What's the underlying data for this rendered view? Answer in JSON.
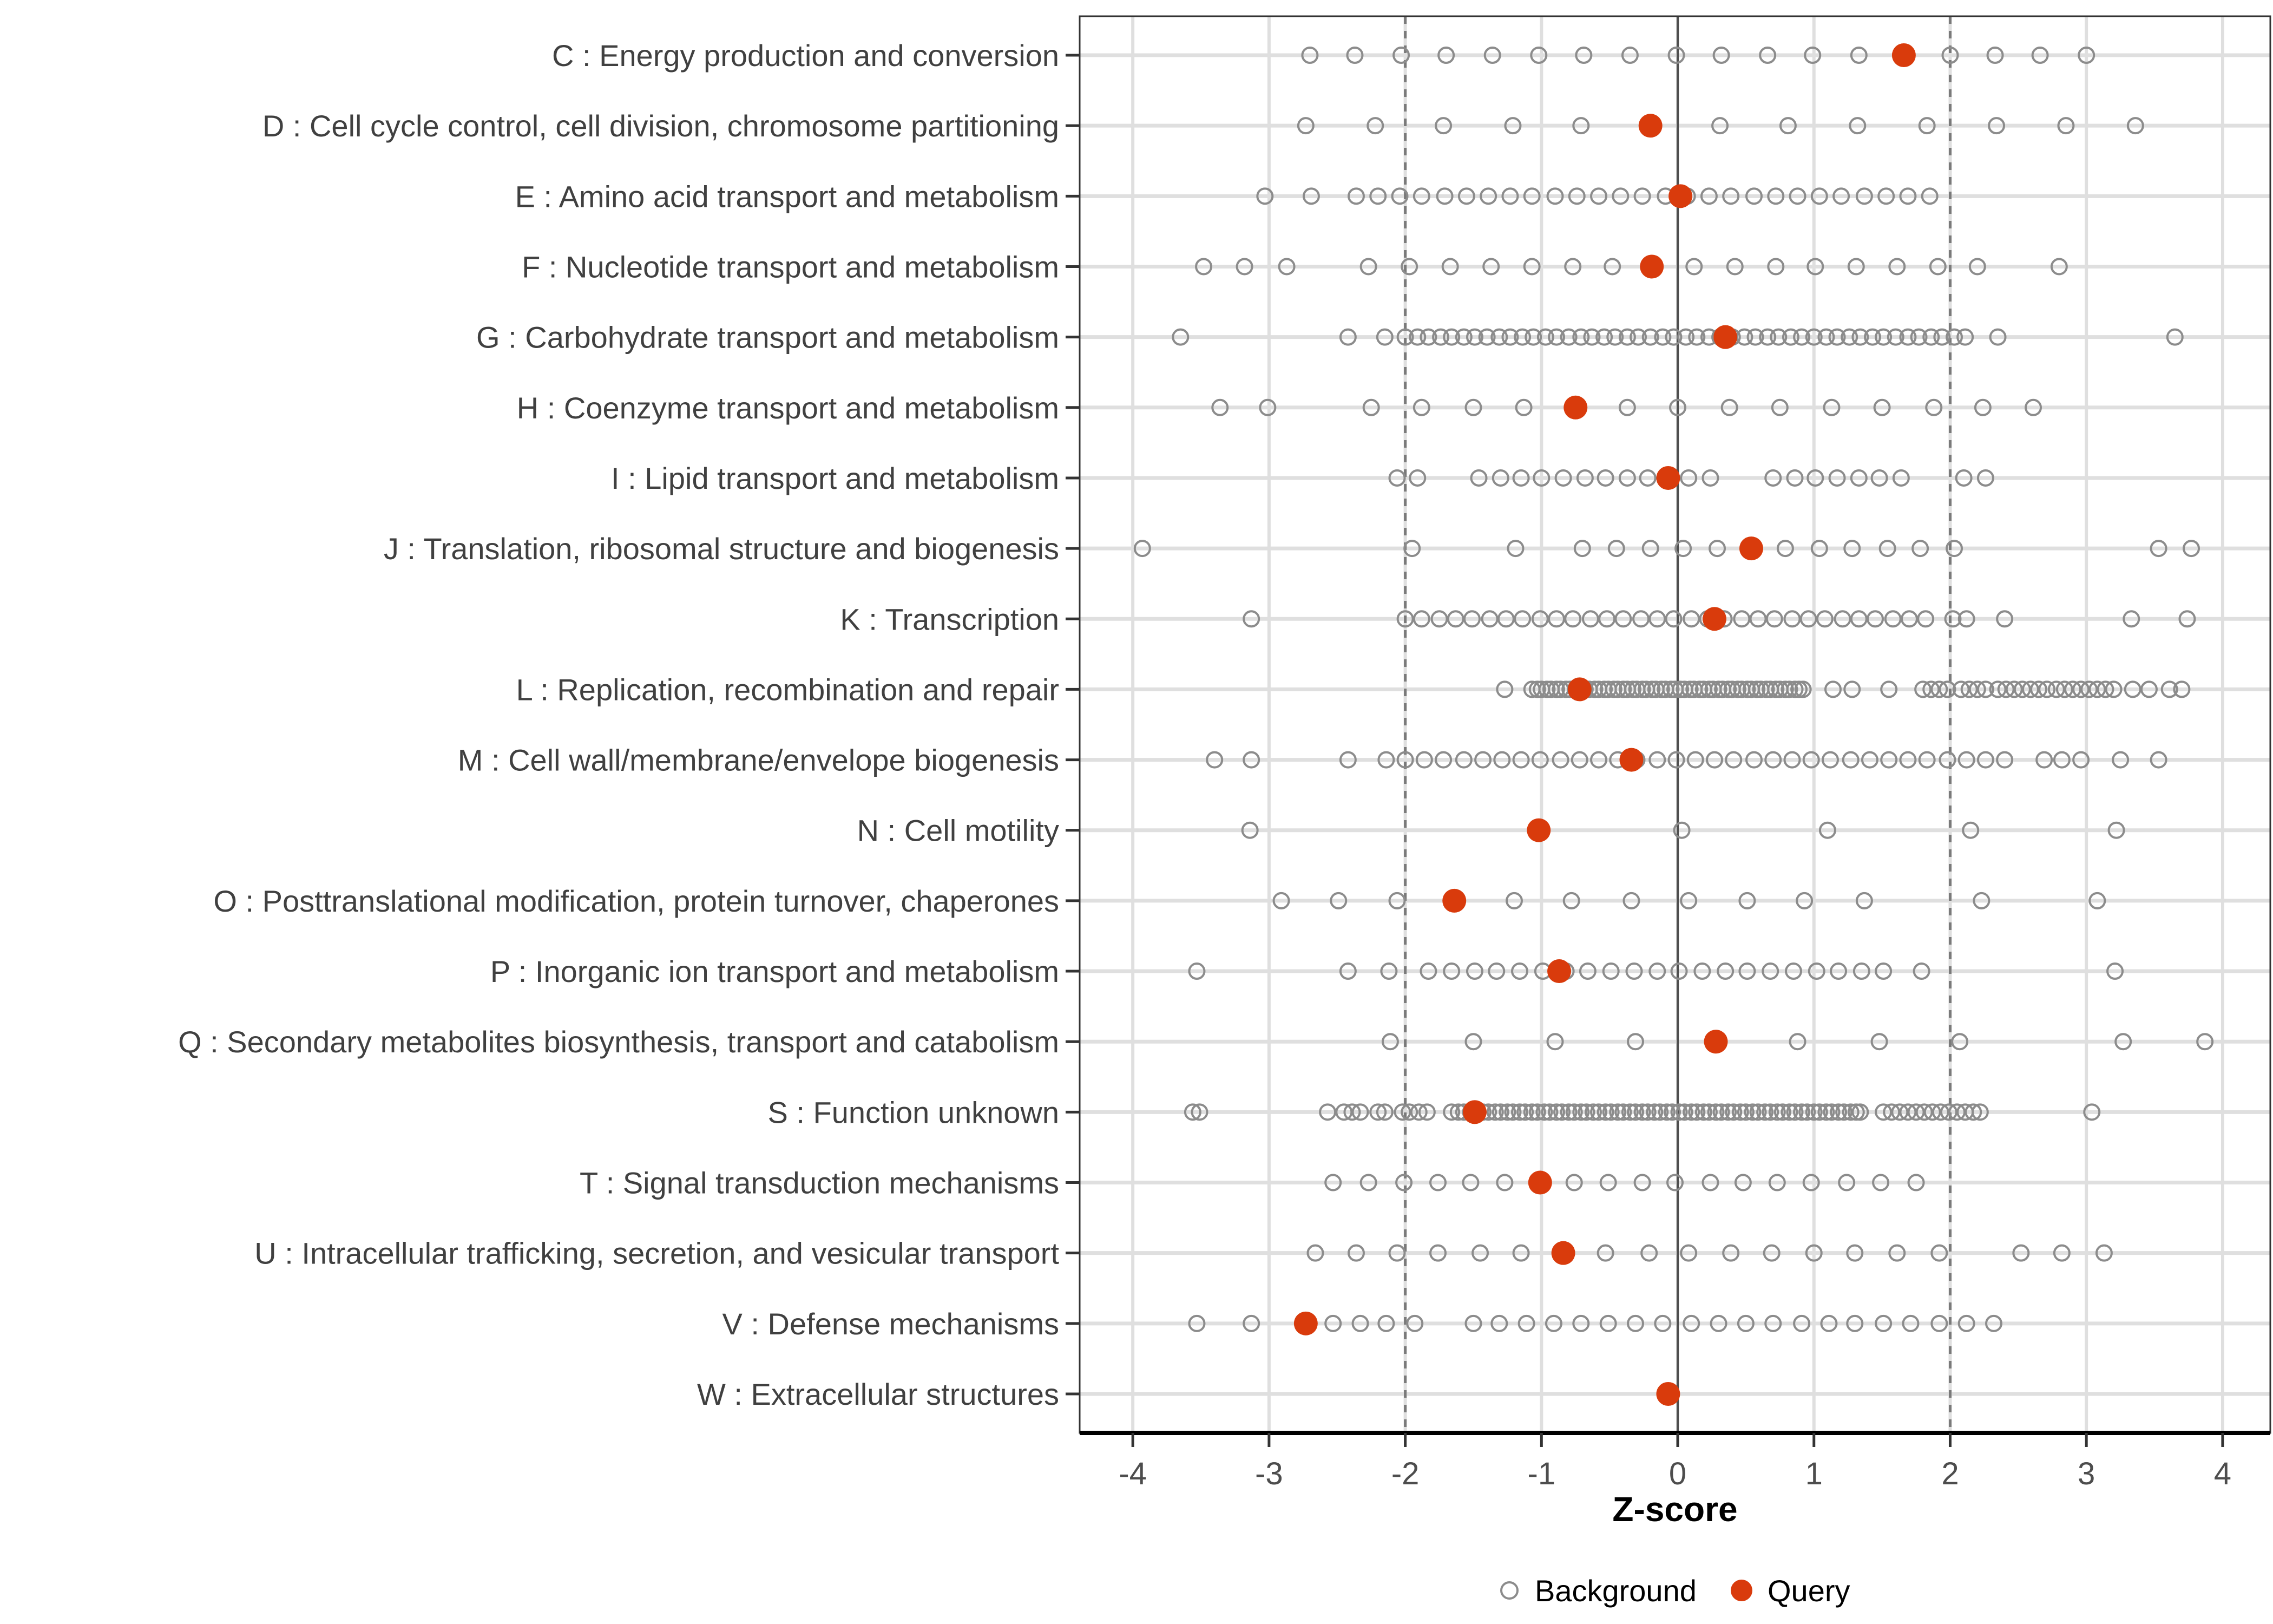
{
  "chart_data": {
    "type": "scatter",
    "subtype": "horizontal-dot-strip-plot",
    "title": "",
    "xlabel": "Z-score",
    "ylabel": "",
    "xlim": [
      -4.39,
      4.35
    ],
    "xticks": [
      -4,
      -3,
      -2,
      -1,
      0,
      1,
      2,
      3,
      4
    ],
    "grid": true,
    "reference_lines": {
      "solid_at": 0,
      "dashed_at": [
        -2,
        2
      ]
    },
    "legend_position": "bottom-center",
    "legend": [
      {
        "label": "Background",
        "marker": "open-circle",
        "color": "#8C8C8C"
      },
      {
        "label": "Query",
        "marker": "filled-circle",
        "color": "#D93B0C"
      }
    ],
    "colors": {
      "query": "#D93B0C",
      "background_stroke": "#8C8C8C",
      "gridline": "#DFDFDF",
      "zero_line": "#4F4F4F",
      "dashed_line": "#7A7A7A",
      "panel_border": "#333333",
      "axis_line": "#000000",
      "tick_label": "#4D4D4D",
      "category_label": "#404040"
    },
    "series": [
      {
        "name": "Background",
        "role": "background-distribution"
      },
      {
        "name": "Query",
        "role": "highlighted-value"
      }
    ],
    "categories": [
      {
        "code": "C",
        "label": "C : Energy production and conversion",
        "query": 1.66,
        "background": [
          -2.7,
          -2.37,
          -2.03,
          -1.7,
          -1.36,
          -1.02,
          -0.69,
          -0.35,
          -0.01,
          0.32,
          0.66,
          0.99,
          1.33,
          1.66,
          2.0,
          2.33,
          2.66,
          3.0
        ]
      },
      {
        "code": "D",
        "label": "D : Cell cycle control, cell division, chromosome partitioning",
        "query": -0.2,
        "background": [
          -2.73,
          -2.22,
          -1.72,
          -1.21,
          -0.71,
          -0.2,
          0.31,
          0.81,
          1.32,
          1.83,
          2.34,
          2.85,
          3.36
        ]
      },
      {
        "code": "E",
        "label": "E : Amino acid transport and metabolism",
        "query": 0.02,
        "background": [
          -3.03,
          -2.69,
          -2.36,
          -2.2,
          -2.04,
          -1.88,
          -1.71,
          -1.55,
          -1.39,
          -1.23,
          -1.07,
          -0.9,
          -0.74,
          -0.58,
          -0.42,
          -0.26,
          -0.09,
          0.07,
          0.23,
          0.39,
          0.56,
          0.72,
          0.88,
          1.04,
          1.2,
          1.37,
          1.53,
          1.69,
          1.85
        ]
      },
      {
        "code": "F",
        "label": "F : Nucleotide transport and metabolism",
        "query": -0.19,
        "background": [
          -3.48,
          -3.18,
          -2.87,
          -2.27,
          -1.97,
          -1.67,
          -1.37,
          -1.07,
          -0.77,
          -0.48,
          -0.18,
          0.12,
          0.42,
          0.72,
          1.01,
          1.31,
          1.61,
          1.91,
          2.2,
          2.8
        ]
      },
      {
        "code": "G",
        "label": "G : Carbohydrate transport and metabolism",
        "query": 0.35,
        "background": [
          -3.65,
          -2.42,
          -2.15,
          -2.0,
          -1.91,
          -1.83,
          -1.74,
          -1.66,
          -1.57,
          -1.49,
          -1.4,
          -1.31,
          -1.23,
          -1.14,
          -1.06,
          -0.97,
          -0.89,
          -0.8,
          -0.71,
          -0.63,
          -0.54,
          -0.46,
          -0.37,
          -0.29,
          -0.2,
          -0.11,
          -0.03,
          0.06,
          0.14,
          0.23,
          0.31,
          0.4,
          0.49,
          0.57,
          0.66,
          0.74,
          0.83,
          0.91,
          1.0,
          1.09,
          1.17,
          1.26,
          1.34,
          1.43,
          1.51,
          1.6,
          1.69,
          1.77,
          1.86,
          1.94,
          2.03,
          2.11,
          2.35,
          3.65
        ]
      },
      {
        "code": "H",
        "label": "H : Coenzyme transport and metabolism",
        "query": -0.75,
        "background": [
          -3.36,
          -3.01,
          -2.25,
          -1.88,
          -1.5,
          -1.13,
          -0.75,
          -0.37,
          0.0,
          0.38,
          0.75,
          1.13,
          1.5,
          1.88,
          2.24,
          2.61
        ]
      },
      {
        "code": "I",
        "label": "I : Lipid transport and metabolism",
        "query": -0.07,
        "background": [
          -2.06,
          -1.91,
          -1.46,
          -1.3,
          -1.15,
          -1.0,
          -0.84,
          -0.68,
          -0.53,
          -0.37,
          -0.22,
          -0.07,
          0.08,
          0.24,
          0.7,
          0.86,
          1.01,
          1.17,
          1.33,
          1.48,
          1.64,
          2.1,
          2.26
        ]
      },
      {
        "code": "J",
        "label": "J : Translation, ribosomal structure and biogenesis",
        "query": 0.54,
        "background": [
          -3.93,
          -1.95,
          -1.19,
          -0.7,
          -0.45,
          -0.2,
          0.04,
          0.29,
          0.54,
          0.79,
          1.04,
          1.28,
          1.54,
          1.78,
          2.03,
          3.53,
          3.77
        ]
      },
      {
        "code": "K",
        "label": "K : Transcription",
        "query": 0.27,
        "background": [
          -3.13,
          -2.0,
          -1.88,
          -1.75,
          -1.63,
          -1.51,
          -1.38,
          -1.26,
          -1.14,
          -1.01,
          -0.89,
          -0.77,
          -0.64,
          -0.52,
          -0.4,
          -0.27,
          -0.15,
          -0.03,
          0.1,
          0.22,
          0.34,
          0.47,
          0.59,
          0.71,
          0.84,
          0.96,
          1.08,
          1.21,
          1.33,
          1.45,
          1.58,
          1.7,
          1.82,
          2.02,
          2.12,
          2.4,
          3.33,
          3.74
        ]
      },
      {
        "code": "L",
        "label": "L : Replication, recombination and repair",
        "query": -0.72,
        "background": [
          -1.27,
          -1.07,
          -1.03,
          -1.0,
          -0.96,
          -0.93,
          -0.89,
          -0.86,
          -0.82,
          -0.79,
          -0.75,
          -0.72,
          -0.68,
          -0.65,
          -0.61,
          -0.58,
          -0.54,
          -0.51,
          -0.47,
          -0.44,
          -0.4,
          -0.37,
          -0.33,
          -0.3,
          -0.26,
          -0.23,
          -0.19,
          -0.16,
          -0.12,
          -0.09,
          -0.05,
          -0.02,
          0.02,
          0.05,
          0.09,
          0.12,
          0.16,
          0.19,
          0.23,
          0.26,
          0.3,
          0.33,
          0.37,
          0.4,
          0.44,
          0.47,
          0.51,
          0.54,
          0.58,
          0.61,
          0.65,
          0.68,
          0.72,
          0.75,
          0.79,
          0.82,
          0.86,
          0.89,
          0.92,
          1.14,
          1.28,
          1.55,
          1.8,
          1.86,
          1.92,
          1.98,
          2.08,
          2.14,
          2.2,
          2.26,
          2.35,
          2.41,
          2.47,
          2.53,
          2.59,
          2.65,
          2.71,
          2.78,
          2.84,
          2.9,
          2.96,
          3.02,
          3.08,
          3.14,
          3.2,
          3.34,
          3.46,
          3.61,
          3.7
        ]
      },
      {
        "code": "M",
        "label": "M : Cell wall/membrane/envelope biogenesis",
        "query": -0.34,
        "background": [
          -3.4,
          -3.13,
          -2.42,
          -2.14,
          -2.0,
          -1.86,
          -1.72,
          -1.57,
          -1.43,
          -1.29,
          -1.15,
          -1.01,
          -0.86,
          -0.72,
          -0.58,
          -0.44,
          -0.3,
          -0.15,
          -0.01,
          0.13,
          0.27,
          0.41,
          0.56,
          0.7,
          0.84,
          0.98,
          1.12,
          1.27,
          1.41,
          1.55,
          1.69,
          1.83,
          1.98,
          2.12,
          2.26,
          2.4,
          2.69,
          2.82,
          2.96,
          3.25,
          3.53
        ]
      },
      {
        "code": "N",
        "label": "N : Cell motility",
        "query": -1.02,
        "background": [
          -3.14,
          0.03,
          1.1,
          2.15,
          3.22
        ]
      },
      {
        "code": "O",
        "label": "O : Posttranslational modification, protein turnover, chaperones",
        "query": -1.64,
        "background": [
          -2.91,
          -2.49,
          -2.06,
          -1.64,
          -1.2,
          -0.78,
          -0.34,
          0.08,
          0.51,
          0.93,
          1.37,
          2.23,
          3.08
        ]
      },
      {
        "code": "P",
        "label": "P : Inorganic ion transport and metabolism",
        "query": -0.87,
        "background": [
          -3.53,
          -2.42,
          -2.12,
          -1.83,
          -1.66,
          -1.49,
          -1.33,
          -1.16,
          -0.99,
          -0.82,
          -0.66,
          -0.49,
          -0.32,
          -0.15,
          0.01,
          0.18,
          0.35,
          0.51,
          0.68,
          0.85,
          1.02,
          1.18,
          1.35,
          1.51,
          1.79,
          3.21
        ]
      },
      {
        "code": "Q",
        "label": "Q : Secondary metabolites biosynthesis, transport and catabolism",
        "query": 0.28,
        "background": [
          -2.11,
          -1.5,
          -0.9,
          -0.31,
          0.28,
          0.88,
          1.48,
          2.07,
          3.27,
          3.87
        ]
      },
      {
        "code": "S",
        "label": "S : Function unknown",
        "query": -1.49,
        "background": [
          -3.56,
          -3.51,
          -2.57,
          -2.45,
          -2.39,
          -2.33,
          -2.2,
          -2.15,
          -2.02,
          -1.97,
          -1.9,
          -1.84,
          -1.66,
          -1.61,
          -1.57,
          -1.52,
          -1.48,
          -1.43,
          -1.39,
          -1.34,
          -1.3,
          -1.25,
          -1.21,
          -1.16,
          -1.12,
          -1.07,
          -1.03,
          -0.98,
          -0.94,
          -0.89,
          -0.85,
          -0.8,
          -0.76,
          -0.71,
          -0.67,
          -0.62,
          -0.58,
          -0.53,
          -0.49,
          -0.44,
          -0.4,
          -0.35,
          -0.31,
          -0.26,
          -0.22,
          -0.17,
          -0.13,
          -0.08,
          -0.04,
          0.01,
          0.05,
          0.1,
          0.14,
          0.19,
          0.23,
          0.28,
          0.32,
          0.37,
          0.41,
          0.46,
          0.5,
          0.55,
          0.59,
          0.64,
          0.68,
          0.73,
          0.77,
          0.82,
          0.86,
          0.91,
          0.95,
          1.0,
          1.04,
          1.09,
          1.13,
          1.18,
          1.22,
          1.27,
          1.31,
          1.34,
          1.51,
          1.57,
          1.63,
          1.69,
          1.75,
          1.81,
          1.87,
          1.93,
          1.99,
          2.05,
          2.11,
          2.17,
          2.22,
          3.04
        ]
      },
      {
        "code": "T",
        "label": "T : Signal transduction mechanisms",
        "query": -1.01,
        "background": [
          -2.53,
          -2.27,
          -2.01,
          -1.76,
          -1.52,
          -1.27,
          -1.01,
          -0.76,
          -0.51,
          -0.26,
          -0.02,
          0.24,
          0.48,
          0.73,
          0.98,
          1.24,
          1.49,
          1.75
        ]
      },
      {
        "code": "U",
        "label": "U : Intracellular trafficking, secretion, and vesicular transport",
        "query": -0.84,
        "background": [
          -2.66,
          -2.36,
          -2.06,
          -1.76,
          -1.45,
          -1.15,
          -0.84,
          -0.53,
          -0.21,
          0.08,
          0.39,
          0.69,
          1.0,
          1.3,
          1.61,
          1.92,
          2.52,
          2.82,
          3.13
        ]
      },
      {
        "code": "V",
        "label": "V : Defense mechanisms",
        "query": -2.73,
        "background": [
          -3.53,
          -3.13,
          -2.53,
          -2.33,
          -2.14,
          -1.93,
          -1.5,
          -1.31,
          -1.11,
          -0.91,
          -0.71,
          -0.51,
          -0.31,
          -0.11,
          0.1,
          0.3,
          0.5,
          0.7,
          0.91,
          1.11,
          1.3,
          1.51,
          1.71,
          1.92,
          2.12,
          2.32
        ]
      },
      {
        "code": "W",
        "label": "W : Extracellular structures",
        "query": -0.07,
        "background": []
      }
    ]
  }
}
